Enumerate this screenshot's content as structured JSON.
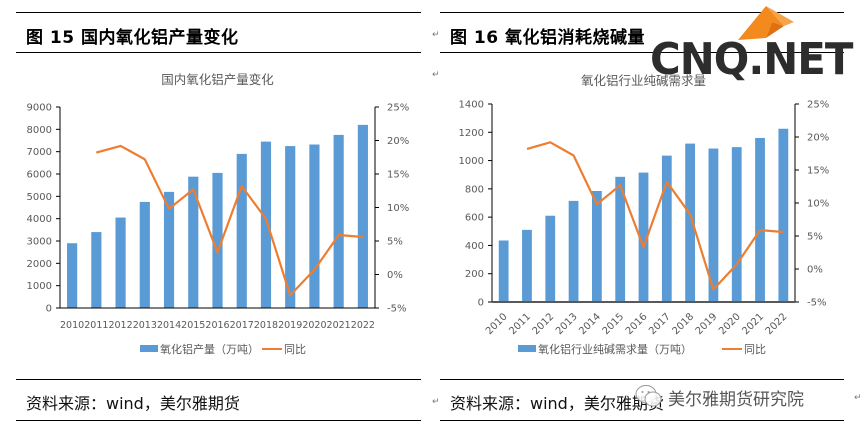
{
  "figures": [
    {
      "fig_label": "图 15  国内氧化铝产量变化",
      "source": "资料来源：wind，美尔雅期货"
    },
    {
      "fig_label": "图 16    氧化铝消耗烧碱量",
      "source": "资料来源：wind，美尔雅期货"
    }
  ],
  "para_mark": "↵",
  "watermark": {
    "logo_text": "CNQ.NET",
    "logo_icon": "orange-origami-bird-icon",
    "brand_text": "美尔雅期货研究院",
    "brand_icon": "wechat-icon"
  },
  "colors": {
    "bar": "#5B9BD5",
    "line": "#ED7D31",
    "axis_text": "#595959"
  },
  "chart_data": [
    {
      "type": "bar+line",
      "title": "国内氧化铝产量变化",
      "categories": [
        "2010",
        "2011",
        "2012",
        "2013",
        "2014",
        "2015",
        "2016",
        "2017",
        "2018",
        "2019",
        "2020",
        "2021",
        "2022"
      ],
      "series": [
        {
          "name": "氧化铝产量（万吨）",
          "type": "bar",
          "axis": "left",
          "values": [
            2900,
            3400,
            4050,
            4750,
            5200,
            5880,
            6050,
            6900,
            7450,
            7250,
            7320,
            7750,
            8200
          ]
        },
        {
          "name": "同比",
          "type": "line",
          "axis": "right",
          "values": [
            null,
            18.2,
            19.2,
            17.2,
            9.8,
            12.7,
            3.3,
            13.2,
            8.3,
            -3.1,
            0.7,
            5.9,
            5.6
          ]
        }
      ],
      "left_axis": {
        "min": 0,
        "max": 9000,
        "ticks": [
          "0",
          "1000",
          "2000",
          "3000",
          "4000",
          "5000",
          "6000",
          "7000",
          "8000",
          "9000"
        ]
      },
      "right_axis": {
        "min": -5,
        "max": 25,
        "ticks": [
          "-5%",
          "0%",
          "5%",
          "10%",
          "15%",
          "20%",
          "25%"
        ]
      },
      "xlabel_rotation": "horizontal",
      "legend": "bottom",
      "grid": false
    },
    {
      "type": "bar+line",
      "title": "氧化铝行业纯碱需求量",
      "categories": [
        "2010",
        "2011",
        "2012",
        "2013",
        "2014",
        "2015",
        "2016",
        "2017",
        "2018",
        "2019",
        "2020",
        "2021",
        "2022"
      ],
      "series": [
        {
          "name": "氧化铝行业纯碱需求量（万吨）",
          "type": "bar",
          "axis": "left",
          "values": [
            435,
            510,
            610,
            715,
            785,
            885,
            915,
            1035,
            1120,
            1085,
            1095,
            1160,
            1225
          ]
        },
        {
          "name": "同比",
          "type": "line",
          "axis": "right",
          "values": [
            null,
            18.2,
            19.2,
            17.2,
            9.8,
            12.7,
            3.3,
            13.2,
            8.3,
            -3.1,
            0.7,
            5.9,
            5.6
          ]
        }
      ],
      "left_axis": {
        "min": 0,
        "max": 1400,
        "ticks": [
          "0",
          "200",
          "400",
          "600",
          "800",
          "1000",
          "1200",
          "1400"
        ]
      },
      "right_axis": {
        "min": -5,
        "max": 25,
        "ticks": [
          "-5%",
          "0%",
          "5%",
          "10%",
          "15%",
          "20%",
          "25%"
        ]
      },
      "xlabel_rotation": "diagonal",
      "legend": "bottom",
      "grid": false
    }
  ]
}
